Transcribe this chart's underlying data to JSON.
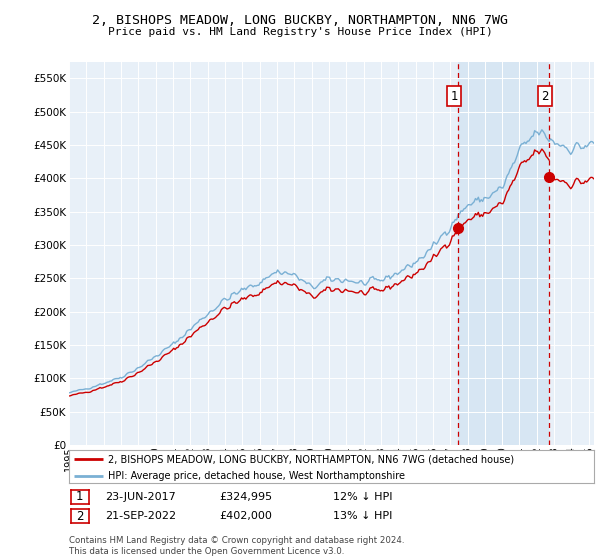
{
  "title": "2, BISHOPS MEADOW, LONG BUCKBY, NORTHAMPTON, NN6 7WG",
  "subtitle": "Price paid vs. HM Land Registry's House Price Index (HPI)",
  "legend_line1": "2, BISHOPS MEADOW, LONG BUCKBY, NORTHAMPTON, NN6 7WG (detached house)",
  "legend_line2": "HPI: Average price, detached house, West Northamptonshire",
  "annotation1_label": "1",
  "annotation1_date": "23-JUN-2017",
  "annotation1_price": "£324,995",
  "annotation1_pct": "12% ↓ HPI",
  "annotation2_label": "2",
  "annotation2_date": "21-SEP-2022",
  "annotation2_price": "£402,000",
  "annotation2_pct": "13% ↓ HPI",
  "footer": "Contains HM Land Registry data © Crown copyright and database right 2024.\nThis data is licensed under the Open Government Licence v3.0.",
  "sale_color": "#cc0000",
  "hpi_color": "#7ab0d4",
  "vline_color": "#cc0000",
  "shade_color": "#ddeeff",
  "background_color": "#e8f0f8",
  "plot_bg": "#e8f0f8",
  "ylim": [
    0,
    575000
  ],
  "yticks": [
    0,
    50000,
    100000,
    150000,
    200000,
    250000,
    300000,
    350000,
    400000,
    450000,
    500000,
    550000
  ],
  "sale1_year": 2017.47,
  "sale1_value": 324995,
  "sale2_year": 2022.72,
  "sale2_value": 402000,
  "xmin": 1995.0,
  "xmax": 2025.3
}
